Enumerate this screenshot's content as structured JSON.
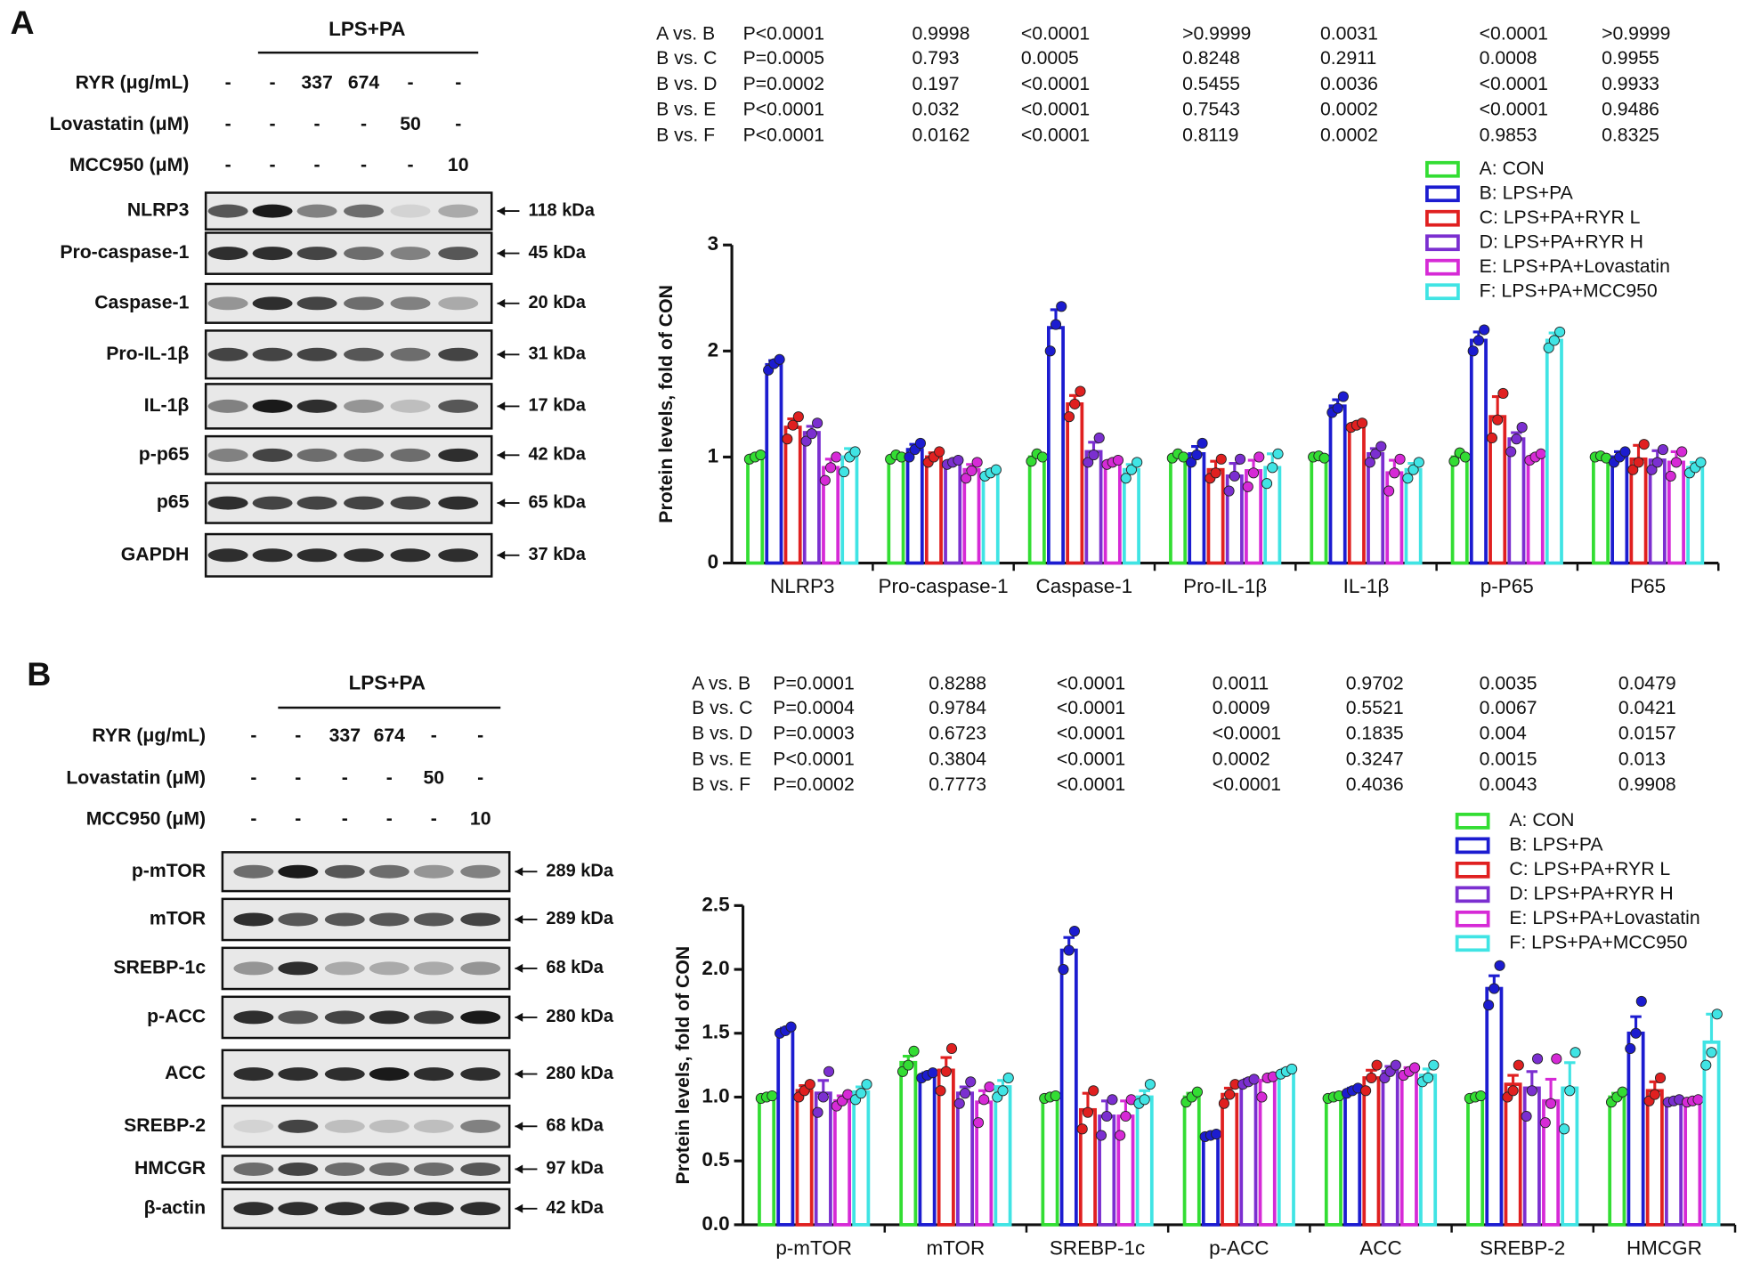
{
  "panels": [
    {
      "label": "A",
      "blot": {
        "group_label": "LPS+PA",
        "treatments": [
          {
            "name": "RYR (μg/mL)",
            "lanes": [
              "-",
              "-",
              "337",
              "674",
              "-",
              "-"
            ]
          },
          {
            "name": "Lovastatin (μM)",
            "lanes": [
              "-",
              "-",
              "-",
              "-",
              "50",
              "-"
            ]
          },
          {
            "name": "MCC950 (μM)",
            "lanes": [
              "-",
              "-",
              "-",
              "-",
              "-",
              "10"
            ]
          }
        ],
        "proteins": [
          {
            "name": "NLRP3",
            "size": "118 kDa"
          },
          {
            "name": "Pro-caspase-1",
            "size": "45 kDa"
          },
          {
            "name": "Caspase-1",
            "size": "20 kDa"
          },
          {
            "name": "Pro-IL-1β",
            "size": "31 kDa"
          },
          {
            "name": "IL-1β",
            "size": "17 kDa"
          },
          {
            "name": "p-p65",
            "size": "42 kDa"
          },
          {
            "name": "p65",
            "size": "65 kDa"
          },
          {
            "name": "GAPDH",
            "size": "37 kDa"
          }
        ]
      },
      "pvalues": [
        [
          "A vs. B",
          "P<0.0001",
          "0.9998",
          "<0.0001",
          ">0.9999",
          "0.0031",
          "<0.0001",
          ">0.9999"
        ],
        [
          "B vs. C",
          "P=0.0005",
          "0.793",
          "0.0005",
          "0.8248",
          "0.2911",
          "0.0008",
          "0.9955"
        ],
        [
          "B vs. D",
          "P=0.0002",
          "0.197",
          "<0.0001",
          "0.5455",
          "0.0036",
          "<0.0001",
          "0.9933"
        ],
        [
          "B vs. E",
          "P<0.0001",
          "0.032",
          "<0.0001",
          "0.7543",
          "0.0002",
          "<0.0001",
          "0.9486"
        ],
        [
          "B vs. F",
          "P<0.0001",
          "0.0162",
          "<0.0001",
          "0.8119",
          "0.0002",
          "0.9853",
          "0.8325"
        ]
      ]
    },
    {
      "label": "B",
      "blot": {
        "group_label": "LPS+PA",
        "treatments": [
          {
            "name": "RYR (μg/mL)",
            "lanes": [
              "-",
              "-",
              "337",
              "674",
              "-",
              "-"
            ]
          },
          {
            "name": "Lovastatin (μM)",
            "lanes": [
              "-",
              "-",
              "-",
              "-",
              "50",
              "-"
            ]
          },
          {
            "name": "MCC950 (μM)",
            "lanes": [
              "-",
              "-",
              "-",
              "-",
              "-",
              "10"
            ]
          }
        ],
        "proteins": [
          {
            "name": "p-mTOR",
            "size": "289 kDa"
          },
          {
            "name": "mTOR",
            "size": "289 kDa"
          },
          {
            "name": "SREBP-1c",
            "size": "68 kDa"
          },
          {
            "name": "p-ACC",
            "size": "280 kDa"
          },
          {
            "name": "ACC",
            "size": "280 kDa"
          },
          {
            "name": "SREBP-2",
            "size": "68 kDa"
          },
          {
            "name": "HMCGR",
            "size": "97 kDa"
          },
          {
            "name": "β-actin",
            "size": "42 kDa"
          }
        ]
      },
      "pvalues": [
        [
          "A vs. B",
          "P=0.0001",
          "0.8288",
          "<0.0001",
          "0.0011",
          "0.9702",
          "0.0035",
          "0.0479"
        ],
        [
          "B vs. C",
          "P=0.0004",
          "0.9784",
          "<0.0001",
          "0.0009",
          "0.5521",
          "0.0067",
          "0.0421"
        ],
        [
          "B vs. D",
          "P=0.0003",
          "0.6723",
          "<0.0001",
          "<0.0001",
          "0.1835",
          "0.004",
          "0.0157"
        ],
        [
          "B vs. E",
          "P<0.0001",
          "0.3804",
          "<0.0001",
          "0.0002",
          "0.3247",
          "0.0015",
          "0.013"
        ],
        [
          "B vs. F",
          "P=0.0002",
          "0.7773",
          "<0.0001",
          "<0.0001",
          "0.4036",
          "0.0043",
          "0.9908"
        ]
      ]
    }
  ],
  "chart_data": [
    {
      "type": "bar",
      "y_label": "Protein levels,  fold of CON",
      "legend": "upper right",
      "categories": [
        "NLRP3",
        "Pro-caspase-1",
        "Caspase-1",
        "Pro-IL-1β",
        "IL-1β",
        "p-P65",
        "P65"
      ],
      "ylim": [
        0,
        3
      ],
      "yticks": [
        0,
        1,
        2,
        3
      ],
      "series": [
        {
          "name": "A: CON",
          "color": "#33dd33",
          "values": [
            1,
            1,
            1,
            1,
            1,
            1,
            1
          ],
          "errors": [
            0.02,
            0.02,
            0.03,
            0.02,
            0.02,
            0.03,
            0.01
          ],
          "points": [
            [
              0.98,
              1.0,
              1.02
            ],
            [
              0.98,
              1.02,
              1.0
            ],
            [
              0.96,
              1.03,
              1.0
            ],
            [
              0.99,
              1.03,
              1.0
            ],
            [
              1.0,
              1.01,
              0.99
            ],
            [
              0.96,
              1.04,
              1.0
            ],
            [
              1.0,
              1.01,
              0.99
            ]
          ]
        },
        {
          "name": "B: LPS+PA",
          "color": "#1c1cd0",
          "values": [
            1.87,
            1.07,
            2.22,
            1.03,
            1.48,
            2.1,
            1.0
          ],
          "errors": [
            0.04,
            0.05,
            0.17,
            0.07,
            0.06,
            0.08,
            0.05
          ],
          "points": [
            [
              1.82,
              1.88,
              1.92
            ],
            [
              1.0,
              1.07,
              1.13
            ],
            [
              2.0,
              2.25,
              2.42
            ],
            [
              0.95,
              1.02,
              1.13
            ],
            [
              1.42,
              1.46,
              1.57
            ],
            [
              2.0,
              2.1,
              2.2
            ],
            [
              0.95,
              1.0,
              1.05
            ]
          ]
        },
        {
          "name": "C: LPS+PA+RYR L",
          "color": "#e02020",
          "values": [
            1.28,
            1.0,
            1.5,
            0.88,
            1.3,
            1.38,
            0.98
          ],
          "errors": [
            0.08,
            0.04,
            0.08,
            0.08,
            0.02,
            0.19,
            0.13
          ],
          "points": [
            [
              1.17,
              1.3,
              1.38
            ],
            [
              0.95,
              1.0,
              1.05
            ],
            [
              1.38,
              1.5,
              1.62
            ],
            [
              0.8,
              0.85,
              0.98
            ],
            [
              1.28,
              1.3,
              1.32
            ],
            [
              1.18,
              1.35,
              1.6
            ],
            [
              0.88,
              0.95,
              1.12
            ]
          ]
        },
        {
          "name": "D: LPS+PA+RYR H",
          "color": "#7b2fd0",
          "values": [
            1.23,
            0.95,
            1.05,
            0.82,
            1.03,
            1.17,
            0.97
          ],
          "errors": [
            0.06,
            0.02,
            0.09,
            0.12,
            0.05,
            0.06,
            0.09
          ],
          "points": [
            [
              1.15,
              1.22,
              1.32
            ],
            [
              0.93,
              0.95,
              0.97
            ],
            [
              0.95,
              1.02,
              1.18
            ],
            [
              0.68,
              0.82,
              0.98
            ],
            [
              0.95,
              1.03,
              1.1
            ],
            [
              1.05,
              1.17,
              1.28
            ],
            [
              0.88,
              0.95,
              1.07
            ]
          ]
        },
        {
          "name": "E: LPS+PA+Lovastatin",
          "color": "#d62ad6",
          "values": [
            0.9,
            0.88,
            0.95,
            0.87,
            0.85,
            1.0,
            0.95
          ],
          "errors": [
            0.08,
            0.05,
            0.02,
            0.1,
            0.12,
            0.02,
            0.1
          ],
          "points": [
            [
              0.78,
              0.9,
              1.0
            ],
            [
              0.8,
              0.87,
              0.95
            ],
            [
              0.93,
              0.95,
              0.97
            ],
            [
              0.72,
              0.85,
              1.0
            ],
            [
              0.68,
              0.85,
              0.98
            ],
            [
              0.97,
              1.0,
              1.03
            ],
            [
              0.82,
              0.95,
              1.05
            ]
          ]
        },
        {
          "name": "F: LPS+PA+MCC950",
          "color": "#40e4e4",
          "values": [
            1.0,
            0.85,
            0.88,
            0.9,
            0.88,
            2.1,
            0.9
          ],
          "errors": [
            0.08,
            0.03,
            0.05,
            0.13,
            0.06,
            0.07,
            0.05
          ],
          "points": [
            [
              0.86,
              1.0,
              1.05
            ],
            [
              0.82,
              0.85,
              0.88
            ],
            [
              0.8,
              0.88,
              0.95
            ],
            [
              0.75,
              0.9,
              1.03
            ],
            [
              0.8,
              0.88,
              0.95
            ],
            [
              2.03,
              2.1,
              2.18
            ],
            [
              0.85,
              0.9,
              0.95
            ]
          ]
        }
      ]
    },
    {
      "type": "bar",
      "y_label": "Protein levels,  fold of CON",
      "legend": "upper right",
      "categories": [
        "p-mTOR",
        "mTOR",
        "SREBP-1c",
        "p-ACC",
        "ACC",
        "SREBP-2",
        "HMCGR"
      ],
      "ylim": [
        0,
        2.5
      ],
      "yticks": [
        {
          "value": 0,
          "label": "0.0"
        },
        {
          "value": 0.5,
          "label": "0.5"
        },
        {
          "value": 1,
          "label": "1.0"
        },
        {
          "value": 1.5,
          "label": "1.5"
        },
        {
          "value": 2,
          "label": "2.0"
        },
        {
          "value": 2.5,
          "label": "2.5"
        }
      ],
      "series": [
        {
          "name": "A: CON",
          "color": "#33dd33",
          "values": [
            1,
            1.27,
            1,
            1,
            1,
            1,
            1
          ],
          "errors": [
            0.01,
            0.05,
            0.01,
            0.03,
            0.01,
            0.01,
            0.03
          ],
          "points": [
            [
              0.99,
              1.0,
              1.01
            ],
            [
              1.2,
              1.25,
              1.36
            ],
            [
              0.99,
              1.0,
              1.01
            ],
            [
              0.96,
              1.0,
              1.04
            ],
            [
              0.99,
              1.0,
              1.01
            ],
            [
              0.99,
              1.0,
              1.01
            ],
            [
              0.96,
              1.0,
              1.04
            ]
          ]
        },
        {
          "name": "B: LPS+PA",
          "color": "#1c1cd0",
          "values": [
            1.52,
            1.17,
            2.15,
            0.7,
            1.05,
            1.85,
            1.5
          ],
          "errors": [
            0.02,
            0.02,
            0.1,
            0.01,
            0.02,
            0.1,
            0.13
          ],
          "points": [
            [
              1.5,
              1.52,
              1.55
            ],
            [
              1.15,
              1.17,
              1.19
            ],
            [
              2.0,
              2.15,
              2.3
            ],
            [
              0.69,
              0.7,
              0.71
            ],
            [
              1.03,
              1.05,
              1.07
            ],
            [
              1.72,
              1.85,
              2.03
            ],
            [
              1.38,
              1.5,
              1.75
            ]
          ]
        },
        {
          "name": "C: LPS+PA+RYR L",
          "color": "#e02020",
          "values": [
            1.05,
            1.21,
            0.9,
            1.02,
            1.15,
            1.1,
            1.05
          ],
          "errors": [
            0.04,
            0.1,
            0.13,
            0.05,
            0.06,
            0.07,
            0.07
          ],
          "points": [
            [
              1.0,
              1.05,
              1.1
            ],
            [
              1.05,
              1.2,
              1.38
            ],
            [
              0.75,
              0.88,
              1.05
            ],
            [
              0.95,
              1.02,
              1.1
            ],
            [
              1.05,
              1.15,
              1.25
            ],
            [
              1.0,
              1.05,
              1.25
            ],
            [
              0.97,
              1.02,
              1.15
            ]
          ]
        },
        {
          "name": "D: LPS+PA+RYR H",
          "color": "#7b2fd0",
          "values": [
            1.03,
            1.03,
            0.85,
            1.12,
            1.2,
            1.07,
            0.97
          ],
          "errors": [
            0.1,
            0.05,
            0.12,
            0.02,
            0.04,
            0.13,
            0.01
          ],
          "points": [
            [
              0.88,
              1.0,
              1.2
            ],
            [
              0.95,
              1.03,
              1.12
            ],
            [
              0.7,
              0.85,
              0.98
            ],
            [
              1.1,
              1.12,
              1.14
            ],
            [
              1.15,
              1.2,
              1.25
            ],
            [
              0.85,
              1.05,
              1.3
            ],
            [
              0.96,
              0.97,
              0.98
            ]
          ]
        },
        {
          "name": "E: LPS+PA+Lovastatin",
          "color": "#d62ad6",
          "values": [
            0.97,
            0.96,
            0.85,
            1.13,
            1.2,
            0.97,
            0.97
          ],
          "errors": [
            0.04,
            0.09,
            0.12,
            0.02,
            0.03,
            0.17,
            0.01
          ],
          "points": [
            [
              0.93,
              0.97,
              1.02
            ],
            [
              0.8,
              0.98,
              1.08
            ],
            [
              0.7,
              0.85,
              0.98
            ],
            [
              1.0,
              1.15,
              1.16
            ],
            [
              1.17,
              1.2,
              1.23
            ],
            [
              0.8,
              0.95,
              1.3
            ],
            [
              0.96,
              0.97,
              0.98
            ]
          ]
        },
        {
          "name": "F: LPS+PA+MCC950",
          "color": "#40e4e4",
          "values": [
            1.04,
            1.08,
            1.0,
            1.2,
            1.17,
            1.07,
            1.43
          ],
          "errors": [
            0.04,
            0.05,
            0.05,
            0.02,
            0.05,
            0.2,
            0.22
          ],
          "points": [
            [
              0.98,
              1.03,
              1.1
            ],
            [
              1.0,
              1.05,
              1.15
            ],
            [
              0.95,
              0.98,
              1.1
            ],
            [
              1.18,
              1.2,
              1.22
            ],
            [
              1.12,
              1.15,
              1.25
            ],
            [
              0.75,
              1.05,
              1.35
            ],
            [
              1.25,
              1.35,
              1.65
            ]
          ]
        }
      ]
    }
  ]
}
